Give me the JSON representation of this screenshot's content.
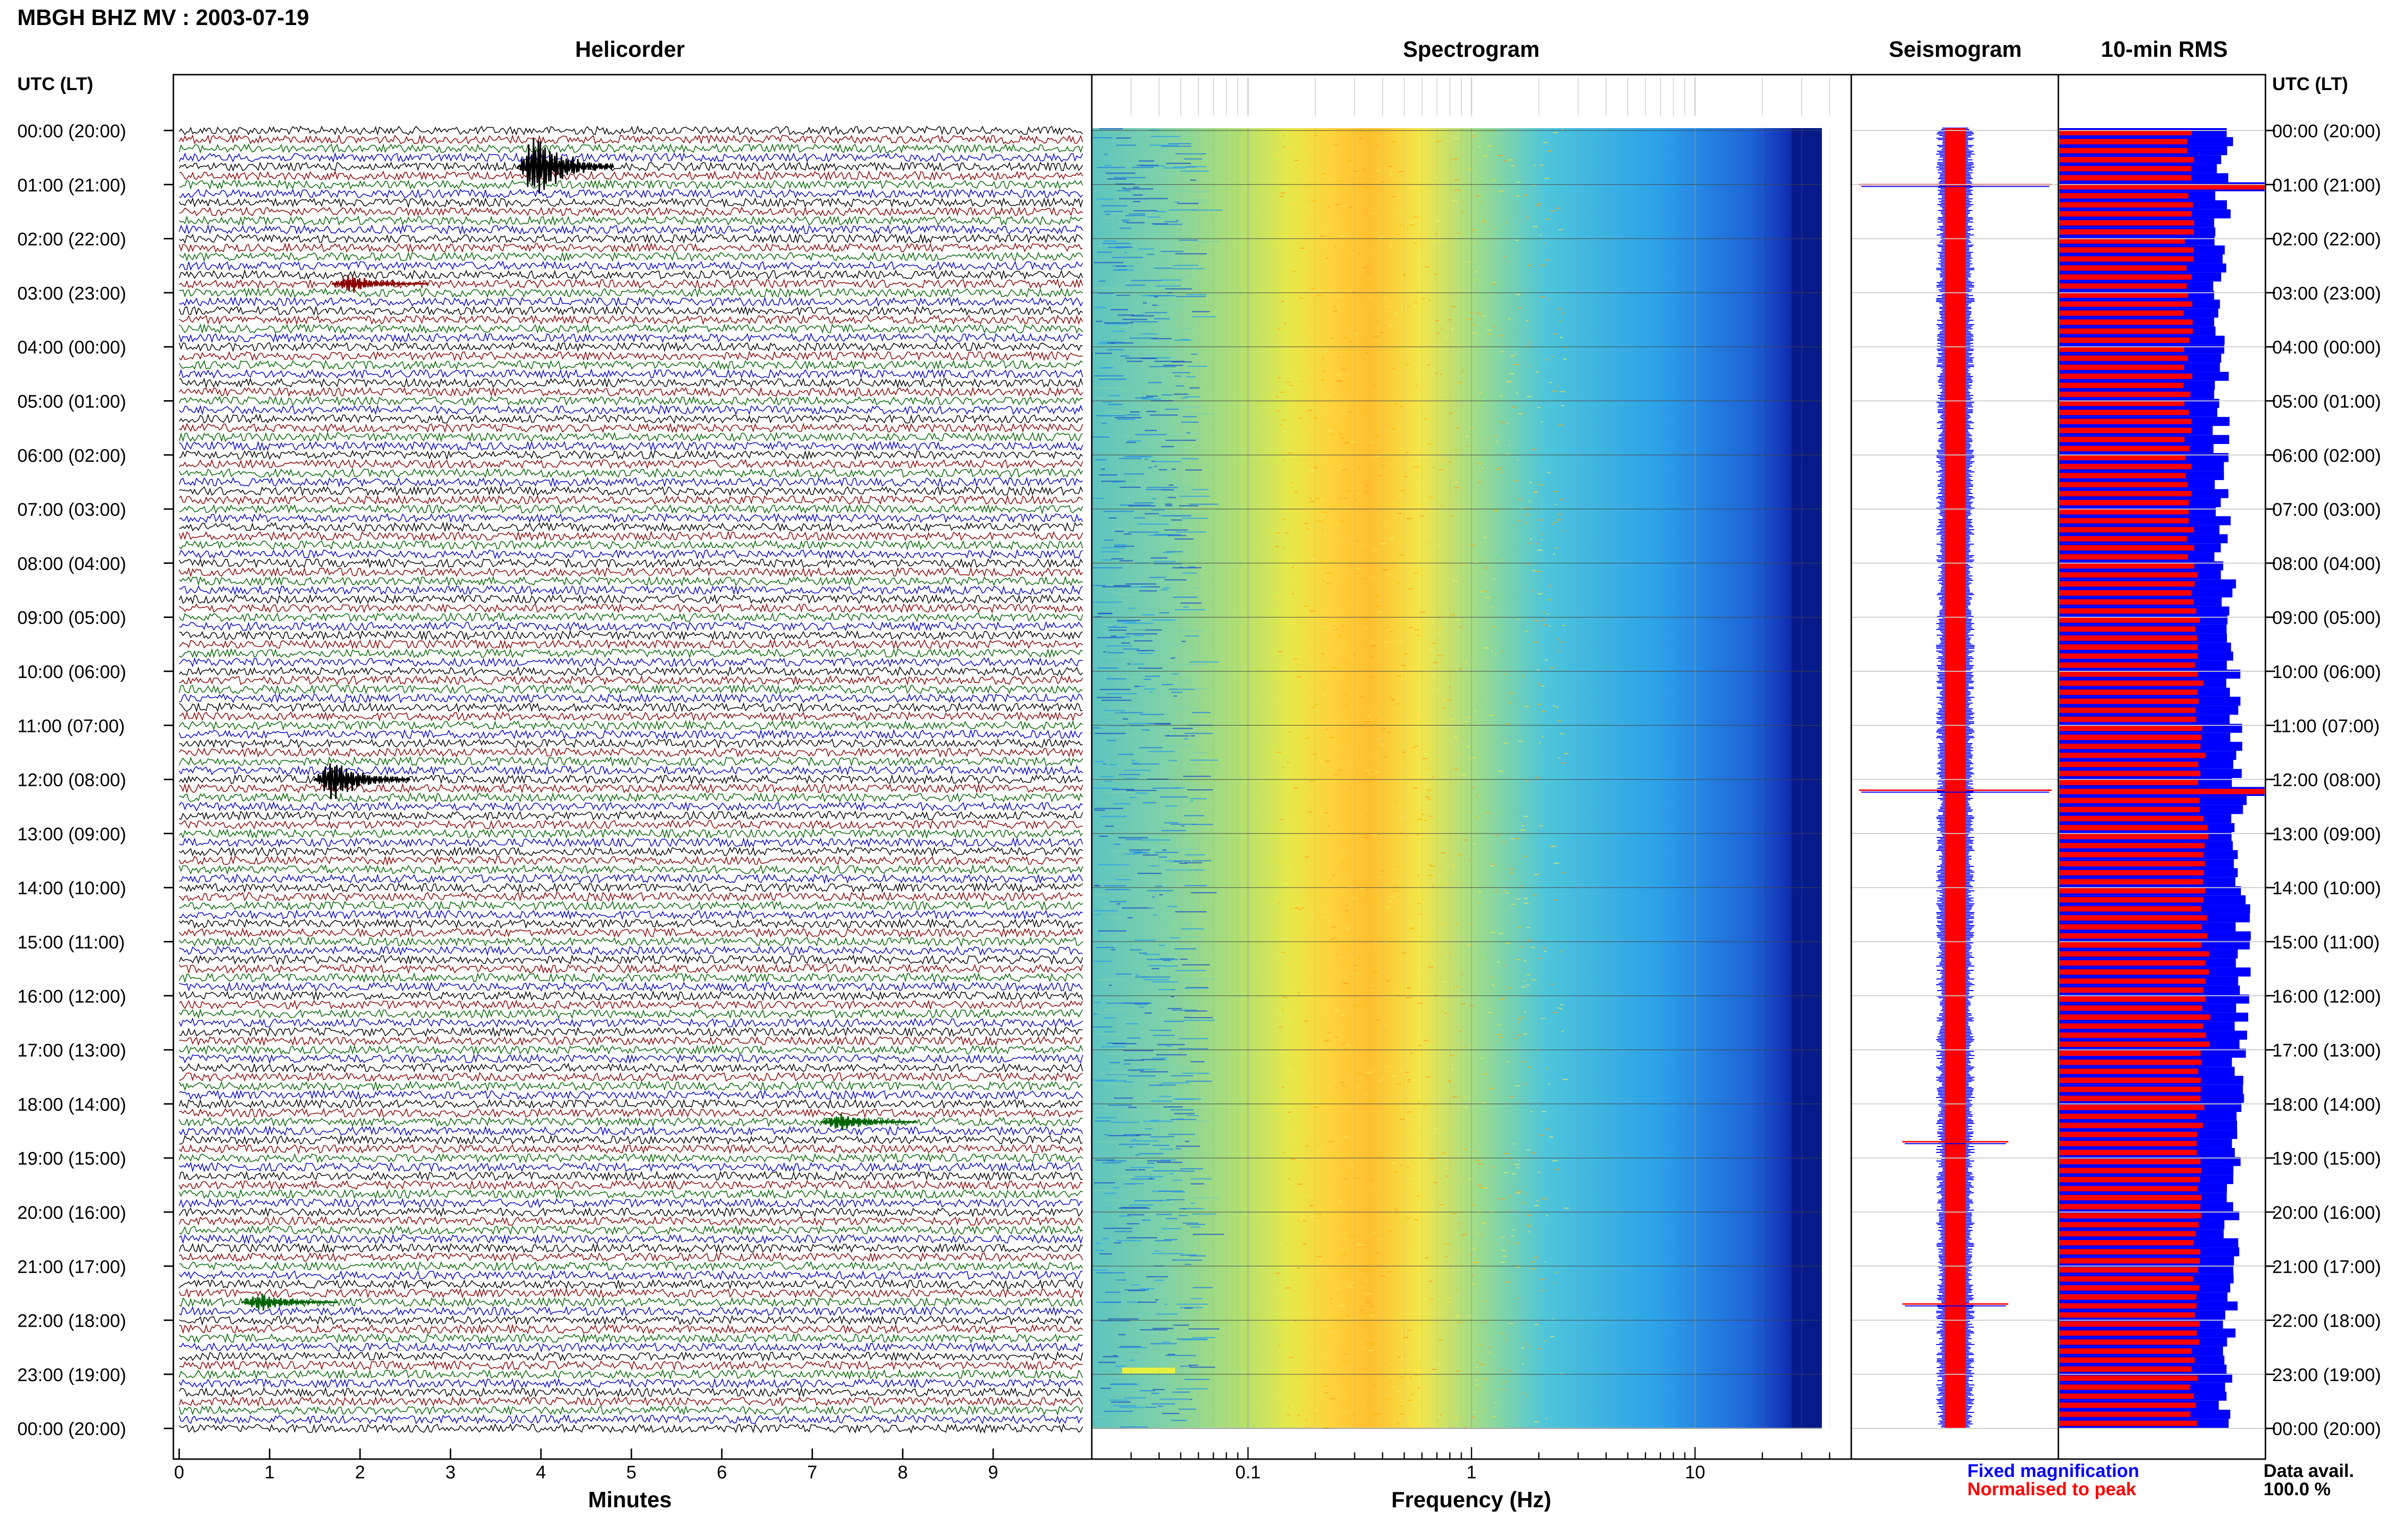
{
  "header": {
    "station_title": "MBGH BHZ MV : 2003-07-19",
    "left_timezone_label": "UTC (LT)",
    "right_timezone_label": "UTC (LT)"
  },
  "panels": {
    "helicorder": "Helicorder",
    "spectrogram": "Spectrogram",
    "seismogram": "Seismogram",
    "rms": "10-min RMS"
  },
  "time_labels": [
    "00:00 (20:00)",
    "01:00 (21:00)",
    "02:00 (22:00)",
    "03:00 (23:00)",
    "04:00 (00:00)",
    "05:00 (01:00)",
    "06:00 (02:00)",
    "07:00 (03:00)",
    "08:00 (04:00)",
    "09:00 (05:00)",
    "10:00 (06:00)",
    "11:00 (07:00)",
    "12:00 (08:00)",
    "13:00 (09:00)",
    "14:00 (10:00)",
    "15:00 (11:00)",
    "16:00 (12:00)",
    "17:00 (13:00)",
    "18:00 (14:00)",
    "19:00 (15:00)",
    "20:00 (16:00)",
    "21:00 (17:00)",
    "22:00 (18:00)",
    "23:00 (19:00)",
    "00:00 (20:00)"
  ],
  "legend": {
    "fixed": "Fixed magnification",
    "normalised": "Normalised to peak",
    "data_avail_label": "Data avail.",
    "data_avail_value": "100.0 %"
  },
  "colors": {
    "trace_cycle": [
      "#000000",
      "#8b0000",
      "#006400",
      "#0000cd"
    ],
    "fixed_magnification": "#0000ff",
    "normalised_to_peak": "#ff0000",
    "grid": "#999999",
    "gridlight": "#cccccc"
  },
  "chart_data": [
    {
      "type": "line",
      "title": "Helicorder",
      "xlabel": "Minutes",
      "xlim": [
        0,
        10
      ],
      "x_ticks": [
        0,
        1,
        2,
        3,
        4,
        5,
        6,
        7,
        8,
        9
      ],
      "y_ticks": [
        "00:00 (20:00)",
        "01:00 (21:00)",
        "02:00 (22:00)",
        "03:00 (23:00)",
        "04:00 (00:00)",
        "05:00 (01:00)",
        "06:00 (02:00)",
        "07:00 (03:00)",
        "08:00 (04:00)",
        "09:00 (05:00)",
        "10:00 (06:00)",
        "11:00 (07:00)",
        "12:00 (08:00)",
        "13:00 (09:00)",
        "14:00 (10:00)",
        "15:00 (11:00)",
        "16:00 (12:00)",
        "17:00 (13:00)",
        "18:00 (14:00)",
        "19:00 (15:00)",
        "20:00 (16:00)",
        "21:00 (17:00)",
        "22:00 (18:00)",
        "23:00 (19:00)",
        "00:00 (20:00)"
      ],
      "lines_per_hour": 6,
      "events": [
        {
          "hour": 0.6,
          "minute": 3.95,
          "amplitude": 3.5
        },
        {
          "hour": 12.0,
          "minute": 1.7,
          "amplitude": 2.2
        },
        {
          "hour": 2.8,
          "minute": 1.9,
          "amplitude": 0.9
        },
        {
          "hour": 18.3,
          "minute": 7.3,
          "amplitude": 0.9
        },
        {
          "hour": 21.6,
          "minute": 0.9,
          "amplitude": 0.9
        }
      ]
    },
    {
      "type": "heatmap",
      "title": "Spectrogram",
      "xlabel": "Frequency (Hz)",
      "x_scale": "log",
      "xlim": [
        0.02,
        50
      ],
      "x_ticks": [
        0.1,
        1,
        10
      ],
      "peak_frequency_hz": 0.33
    },
    {
      "type": "line",
      "title": "Seismogram",
      "series": [
        {
          "name": "Fixed magnification",
          "color": "#0000ff"
        },
        {
          "name": "Normalised to peak",
          "color": "#ff0000"
        }
      ],
      "spikes_hour": [
        1.0,
        12.2,
        18.7,
        21.7
      ]
    },
    {
      "type": "bar",
      "title": "10-min RMS",
      "series": [
        {
          "name": "Fixed magnification",
          "color": "#0000ff"
        },
        {
          "name": "Normalised to peak",
          "color": "#ff0000"
        }
      ],
      "bins": 144,
      "bin_minutes": 10,
      "peaks_hour": [
        0.95,
        12.2
      ]
    }
  ]
}
